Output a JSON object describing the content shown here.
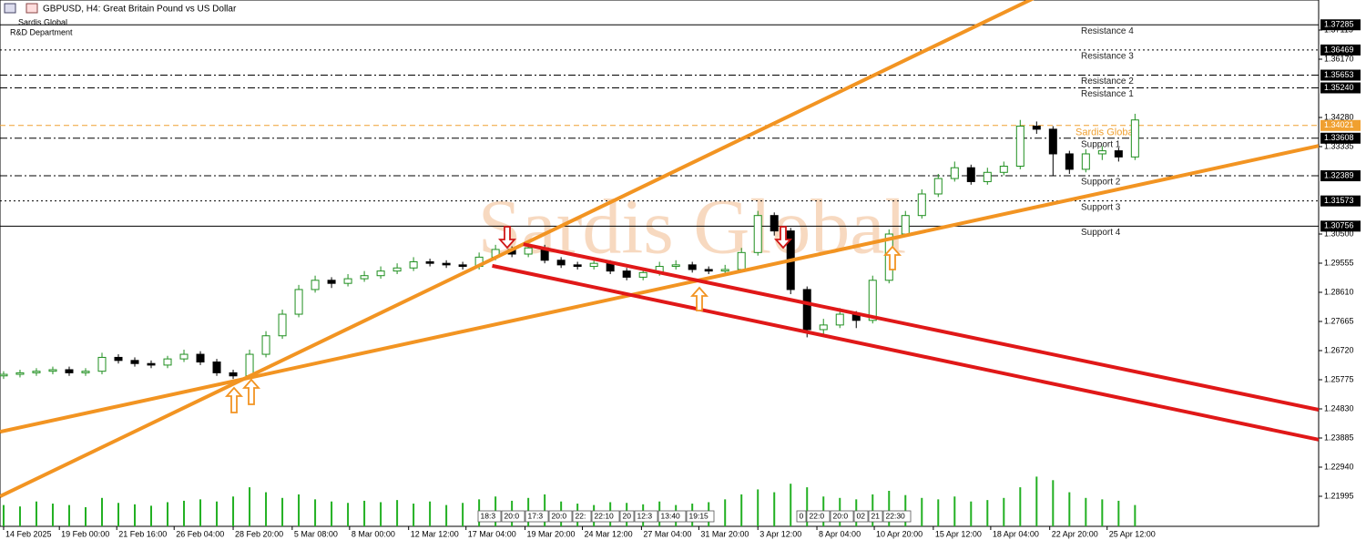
{
  "chart_data": {
    "type": "candlestick",
    "title": "GBPUSD, H4:  Great Britain Pound vs US Dollar",
    "subtitle": [
      "Sardis Global",
      "R&D Department"
    ],
    "watermark": "Sardis Global",
    "up_color": "#1f8f1f",
    "down_color": "#000000",
    "volume_color": "#22b022",
    "xlim": [
      -0.22,
      80.2
    ],
    "ylim": [
      1.2102,
      1.3809
    ],
    "volume_ylim": [
      0,
      100
    ],
    "yticks": [
      1.21995,
      {
        "value": 1.2294,
        "label": "1.22940"
      },
      1.23885,
      {
        "value": 1.2483,
        "label": "1.24830"
      },
      1.25775,
      {
        "value": 1.2672,
        "label": "1.26720"
      },
      1.27665,
      {
        "value": 1.2861,
        "label": "1.28610"
      },
      1.29555,
      {
        "value": 1.305,
        "label": "1.30500"
      },
      1.33335,
      {
        "value": 1.3428,
        "label": "1.34280"
      },
      {
        "value": 1.3617,
        "label": "1.36170"
      },
      1.37115
    ],
    "xticks": [
      {
        "value": 0,
        "label": "14 Feb 2025"
      },
      {
        "value": 3.4,
        "label": "19 Feb 00:00"
      },
      {
        "value": 6.9,
        "label": "21 Feb 16:00"
      },
      {
        "value": 10.4,
        "label": "26 Feb 04:00"
      },
      {
        "value": 14,
        "label": "28 Feb 20:00"
      },
      {
        "value": 17.6,
        "label": "5 Mar 08:00"
      },
      {
        "value": 21.1,
        "label": "8 Mar 00:00"
      },
      {
        "value": 24.7,
        "label": "12 Mar 12:00"
      },
      {
        "value": 28.2,
        "label": "17 Mar 04:00"
      },
      {
        "value": 31.8,
        "label": "19 Mar 20:00"
      },
      {
        "value": 35.3,
        "label": "24 Mar 12:00"
      },
      {
        "value": 38.9,
        "label": "27 Mar 04:00"
      },
      {
        "value": 42.4,
        "label": "31 Mar 20:00"
      },
      {
        "value": 46,
        "label": "3 Apr 12:00"
      },
      {
        "value": 49.6,
        "label": "8 Apr 04:00"
      },
      {
        "value": 53.1,
        "label": "10 Apr 20:00"
      },
      {
        "value": 56.7,
        "label": "15 Apr 12:00"
      },
      {
        "value": 60.2,
        "label": "18 Apr 04:00"
      },
      {
        "value": 63.8,
        "label": "22 Apr 20:00"
      },
      {
        "value": 67.3,
        "label": "25 Apr 12:00"
      }
    ],
    "candles": [
      [
        1.259,
        1.2605,
        1.258,
        1.2595
      ],
      [
        1.2595,
        1.261,
        1.2585,
        1.26
      ],
      [
        1.26,
        1.2615,
        1.259,
        1.2605
      ],
      [
        1.2605,
        1.262,
        1.2595,
        1.261
      ],
      [
        1.261,
        1.262,
        1.259,
        1.26
      ],
      [
        1.26,
        1.2615,
        1.259,
        1.2605
      ],
      [
        1.2605,
        1.2665,
        1.2595,
        1.265
      ],
      [
        1.265,
        1.266,
        1.263,
        1.264
      ],
      [
        1.264,
        1.265,
        1.262,
        1.263
      ],
      [
        1.263,
        1.264,
        1.2615,
        1.2625
      ],
      [
        1.2625,
        1.2655,
        1.2615,
        1.2645
      ],
      [
        1.2645,
        1.2675,
        1.2635,
        1.266
      ],
      [
        1.266,
        1.267,
        1.2625,
        1.2635
      ],
      [
        1.2635,
        1.2645,
        1.259,
        1.26
      ],
      [
        1.26,
        1.261,
        1.258,
        1.259
      ],
      [
        1.259,
        1.2675,
        1.2585,
        1.266
      ],
      [
        1.266,
        1.2735,
        1.265,
        1.272
      ],
      [
        1.272,
        1.2805,
        1.271,
        1.279
      ],
      [
        1.279,
        1.2885,
        1.278,
        1.287
      ],
      [
        1.287,
        1.2915,
        1.286,
        1.29
      ],
      [
        1.29,
        1.291,
        1.2875,
        1.289
      ],
      [
        1.289,
        1.292,
        1.288,
        1.2905
      ],
      [
        1.2905,
        1.293,
        1.2895,
        1.2915
      ],
      [
        1.2915,
        1.2945,
        1.2905,
        1.293
      ],
      [
        1.293,
        1.2955,
        1.292,
        1.294
      ],
      [
        1.294,
        1.2975,
        1.293,
        1.296
      ],
      [
        1.296,
        1.297,
        1.2945,
        1.2955
      ],
      [
        1.2955,
        1.2965,
        1.294,
        1.295
      ],
      [
        1.295,
        1.296,
        1.2935,
        1.2945
      ],
      [
        1.2945,
        1.299,
        1.2935,
        1.2975
      ],
      [
        1.2975,
        1.3015,
        1.2965,
        1.3
      ],
      [
        1.3,
        1.301,
        1.2975,
        1.2985
      ],
      [
        1.2985,
        1.302,
        1.2975,
        1.3005
      ],
      [
        1.3005,
        1.3015,
        1.2955,
        1.2965
      ],
      [
        1.2965,
        1.2975,
        1.294,
        1.295
      ],
      [
        1.295,
        1.296,
        1.2935,
        1.2945
      ],
      [
        1.2945,
        1.297,
        1.2935,
        1.2955
      ],
      [
        1.2955,
        1.2965,
        1.292,
        1.293
      ],
      [
        1.293,
        1.294,
        1.29,
        1.291
      ],
      [
        1.291,
        1.294,
        1.29,
        1.2925
      ],
      [
        1.2925,
        1.296,
        1.2915,
        1.2945
      ],
      [
        1.2945,
        1.2965,
        1.2935,
        1.295
      ],
      [
        1.295,
        1.296,
        1.2925,
        1.2935
      ],
      [
        1.2935,
        1.2945,
        1.292,
        1.293
      ],
      [
        1.293,
        1.295,
        1.292,
        1.2935
      ],
      [
        1.2935,
        1.3005,
        1.2925,
        1.299
      ],
      [
        1.299,
        1.3125,
        1.298,
        1.311
      ],
      [
        1.311,
        1.312,
        1.3045,
        1.306
      ],
      [
        1.306,
        1.307,
        1.2855,
        1.287
      ],
      [
        1.287,
        1.288,
        1.2715,
        1.274
      ],
      [
        1.274,
        1.2775,
        1.2725,
        1.2755
      ],
      [
        1.2755,
        1.281,
        1.2745,
        1.279
      ],
      [
        1.279,
        1.28,
        1.2745,
        1.277
      ],
      [
        1.277,
        1.2915,
        1.276,
        1.29
      ],
      [
        1.29,
        1.3065,
        1.289,
        1.305
      ],
      [
        1.305,
        1.3125,
        1.304,
        1.311
      ],
      [
        1.311,
        1.3195,
        1.31,
        1.318
      ],
      [
        1.318,
        1.3245,
        1.317,
        1.323
      ],
      [
        1.323,
        1.3285,
        1.322,
        1.3265
      ],
      [
        1.3265,
        1.3275,
        1.321,
        1.322
      ],
      [
        1.322,
        1.3265,
        1.321,
        1.325
      ],
      [
        1.325,
        1.3285,
        1.324,
        1.327
      ],
      [
        1.327,
        1.342,
        1.326,
        1.34
      ],
      [
        1.34,
        1.3415,
        1.3375,
        1.339
      ],
      [
        1.339,
        1.34,
        1.324,
        1.331
      ],
      [
        1.331,
        1.332,
        1.3245,
        1.326
      ],
      [
        1.326,
        1.3325,
        1.325,
        1.331
      ],
      [
        1.331,
        1.3335,
        1.329,
        1.332
      ],
      [
        1.332,
        1.333,
        1.3285,
        1.33
      ],
      [
        1.33,
        1.344,
        1.329,
        1.342
      ]
    ],
    "volumes": [
      30,
      28,
      35,
      32,
      30,
      27,
      40,
      33,
      31,
      29,
      34,
      36,
      38,
      35,
      42,
      55,
      48,
      40,
      45,
      38,
      35,
      33,
      36,
      34,
      37,
      32,
      35,
      30,
      33,
      38,
      42,
      36,
      40,
      45,
      35,
      32,
      30,
      34,
      33,
      31,
      35,
      30,
      32,
      34,
      38,
      45,
      52,
      48,
      60,
      55,
      42,
      40,
      38,
      45,
      50,
      44,
      40,
      38,
      42,
      35,
      37,
      40,
      55,
      70,
      65,
      48,
      40,
      38,
      36,
      30
    ],
    "levels": [
      {
        "name": "Resistance 4",
        "price": 1.37285,
        "style": "solid"
      },
      {
        "name": "Resistance 3",
        "price": 1.36469,
        "style": "dotted"
      },
      {
        "name": "Resistance 2",
        "price": 1.35653,
        "style": "dashdot"
      },
      {
        "name": "Resistance 1",
        "price": 1.3524,
        "price_label": "1.35240",
        "style": "dashdot"
      },
      {
        "name": "Support 1",
        "price": 1.33608,
        "style": "dashdot"
      },
      {
        "name": "Support 2",
        "price": 1.32389,
        "style": "dashdot"
      },
      {
        "name": "Support 3",
        "price": 1.31573,
        "style": "dotted"
      },
      {
        "name": "Support 4",
        "price": 1.30756,
        "style": "solid"
      }
    ],
    "current_price": {
      "name": "Sardis Global",
      "price": 1.34021,
      "color": "#f0a030"
    },
    "trendlines": [
      {
        "color": "#f29422",
        "points": [
          [
            15,
            1.2584
          ],
          [
            80.2,
            1.3336
          ]
        ]
      },
      {
        "color": "#f29422",
        "points": [
          [
            14.8,
            1.2584
          ],
          [
            62.6,
            1.3809
          ]
        ]
      },
      {
        "color": "#e01818",
        "points": [
          [
            31.7,
            1.3017
          ],
          [
            80.2,
            1.248
          ]
        ]
      },
      {
        "color": "#e01818",
        "points": [
          [
            29.8,
            1.2947
          ],
          [
            80.2,
            1.2383
          ]
        ]
      }
    ],
    "session_labels": [
      [
        "18:3",
        "20:0",
        "17:3",
        "20:0",
        "22:",
        "22:10",
        "20",
        "12:3",
        "13:40",
        "19:15"
      ],
      [
        "0",
        "22:0",
        "20:0",
        "02",
        "21",
        "22:30"
      ]
    ]
  }
}
